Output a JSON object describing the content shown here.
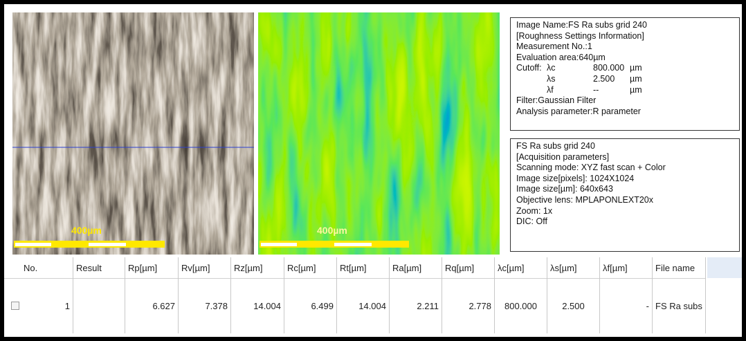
{
  "images": [
    {
      "scale_label": "400µm"
    },
    {
      "scale_label": "400µm"
    }
  ],
  "info_panel": {
    "image_name": "Image Name:FS Ra subs grid 240",
    "section": "[Roughness Settings Information]",
    "measurement": "Measurement No.:1",
    "evaluation": "Evaluation area:640µm",
    "cutoff_label": "Cutoff:",
    "cutoff_rows": [
      {
        "symbol": "λc",
        "value": "800.000",
        "unit": "µm"
      },
      {
        "symbol": "λs",
        "value": "2.500",
        "unit": "µm"
      },
      {
        "symbol": "λf",
        "value": "--",
        "unit": "µm"
      }
    ],
    "filter": "Filter:Gaussian Filter",
    "analysis": "Analysis parameter:R parameter"
  },
  "acquisition_panel": {
    "lines": [
      "FS Ra subs grid 240",
      "[Acquisition parameters]",
      "Scanning mode: XYZ fast scan + Color",
      "Image size[pixels]: 1024X1024",
      "Image size[µm]: 640x643",
      "Objective lens: MPLAPONLEXT20x",
      "Zoom: 1x",
      "DIC: Off"
    ]
  },
  "table": {
    "headers": [
      "No.",
      "Result",
      "Rp[µm]",
      "Rv[µm]",
      "Rz[µm]",
      "Rc[µm]",
      "Rt[µm]",
      "Ra[µm]",
      "Rq[µm]",
      "λc[µm]",
      "λs[µm]",
      "λf[µm]",
      "File name"
    ],
    "rows": [
      {
        "no": "1",
        "rp": "6.627",
        "rv": "7.378",
        "rz": "14.004",
        "rc": "6.499",
        "rt": "14.004",
        "ra": "2.211",
        "rq": "2.778",
        "lc": "800.000",
        "ls": "2.500",
        "lf": "-",
        "file": "FS Ra subs"
      }
    ]
  }
}
